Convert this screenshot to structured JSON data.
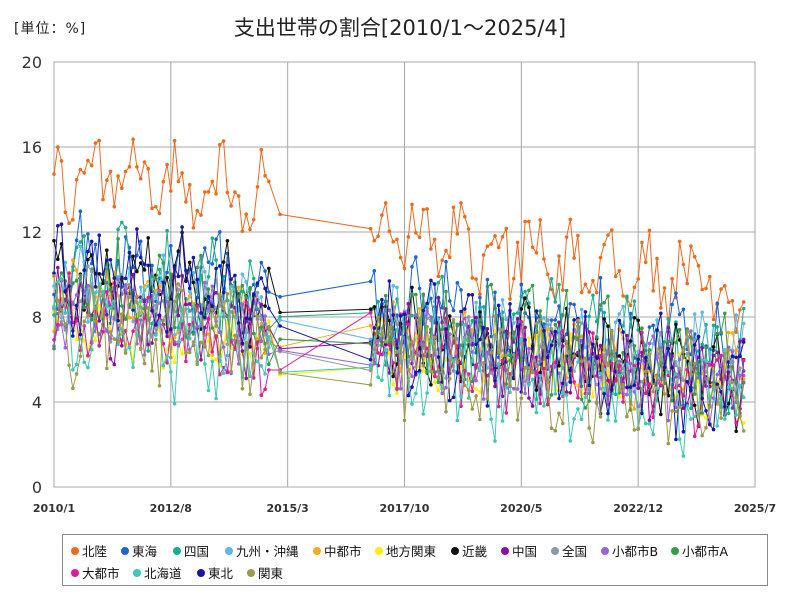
{
  "chart_data": {
    "type": "line",
    "title": "支出世帯の割合[2010/1～2025/4]",
    "unit_label": "[単位：%]",
    "ylim": [
      0,
      20
    ],
    "y_ticks": [
      "0",
      "4",
      "8",
      "12",
      "16",
      "20"
    ],
    "x_ticks": [
      "2010/1",
      "2012/8",
      "2015/3",
      "2017/10",
      "2020/5",
      "2022/12",
      "2025/7"
    ],
    "grid": true,
    "legend_position": "bottom",
    "series": [
      {
        "name": "北陸",
        "color": "#f06a1c"
      },
      {
        "name": "東海",
        "color": "#1a64d6"
      },
      {
        "name": "四国",
        "color": "#1aae8a"
      },
      {
        "name": "九州・沖縄",
        "color": "#5cb8ea"
      },
      {
        "name": "中都市",
        "color": "#f2ac1c"
      },
      {
        "name": "地方関東",
        "color": "#ffee00"
      },
      {
        "name": "近畿",
        "color": "#111111"
      },
      {
        "name": "中国",
        "color": "#8a0fa0"
      },
      {
        "name": "全国",
        "color": "#8c9aa8"
      },
      {
        "name": "小都市B",
        "color": "#9a62e0"
      },
      {
        "name": "小都市A",
        "color": "#3a9a4a"
      },
      {
        "name": "大都市",
        "color": "#e01a9c"
      },
      {
        "name": "北海道",
        "color": "#3ccab6"
      },
      {
        "name": "東北",
        "color": "#1616a8"
      },
      {
        "name": "関東",
        "color": "#9a9a4a"
      }
    ]
  }
}
